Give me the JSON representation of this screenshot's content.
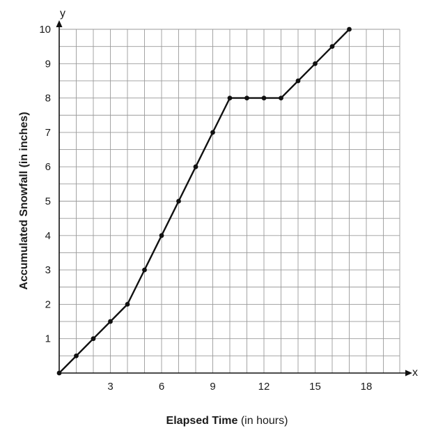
{
  "chart_data": {
    "type": "line",
    "title": "",
    "xlabel_main": "Elapsed Time",
    "xlabel_unit": " (in hours)",
    "ylabel_main": "Accumulated Snowfall",
    "ylabel_unit": " (in inches)",
    "x_axis_name": "x",
    "y_axis_name": "y",
    "xlim": [
      0,
      19.5
    ],
    "ylim": [
      0,
      10
    ],
    "x_ticks": [
      3,
      6,
      9,
      12,
      15,
      18
    ],
    "y_ticks": [
      1,
      2,
      3,
      4,
      5,
      6,
      7,
      8,
      9,
      10
    ],
    "x_tick_labels": [
      "3",
      "6",
      "9",
      "12",
      "15",
      "18"
    ],
    "y_tick_labels": [
      "1",
      "2",
      "3",
      "4",
      "5",
      "6",
      "7",
      "8",
      "9",
      "10"
    ],
    "grid": true,
    "series": [
      {
        "x": [
          0,
          1,
          2,
          3,
          4,
          5,
          6,
          7,
          8,
          9,
          10,
          11,
          12,
          13,
          14,
          15,
          16,
          17
        ],
        "y": [
          0,
          0.5,
          1,
          1.5,
          2,
          3,
          4,
          5,
          6,
          7,
          8,
          8,
          8,
          8,
          8.5,
          9,
          9.5,
          10
        ]
      }
    ],
    "colors": {
      "line": "#111111",
      "grid": "#9a9a9a",
      "axis": "#111111"
    }
  }
}
